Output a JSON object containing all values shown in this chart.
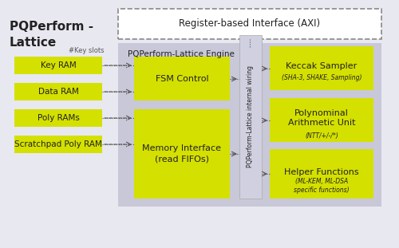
{
  "title": "PQPerform -\nLattice",
  "bg_color": "#e8e8f0",
  "white": "#ffffff",
  "yellow": "#d4e000",
  "gray_engine": "#c8c8d8",
  "gray_internal": "#b0b0c8",
  "dark_text": "#222222",
  "axi_label": "Register-based Interface (AXI)",
  "engine_label": "PQPerform-Lattice Engine",
  "fsm_label": "FSM Control",
  "mem_label": "Memory Interface\n(read FIFOs)",
  "vertical_label": "PQPerform-Lattice internal wiring",
  "keccak_label": "Keccak Sampler",
  "keccak_sub": "(SHA-3, SHAKE, Sampling)",
  "poly_arith_label": "Polynominal\nArithmetic Unit",
  "poly_arith_sub": "(NTT/+/-/*)",
  "helper_label": "Helper Functions",
  "helper_sub": "(ML-KEM, ML-DSA\nspecific functions)",
  "key_slots_label": "#Key slots",
  "ram_labels": [
    "Key RAM",
    "Data RAM",
    "Poly RAMs",
    "Scratchpad Poly RAM"
  ]
}
